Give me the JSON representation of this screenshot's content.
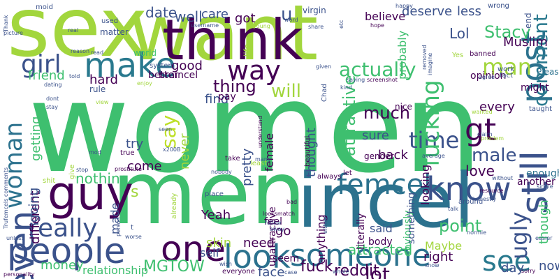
{
  "words": [
    {
      "text": "women",
      "color": "#3ebf6f"
    },
    {
      "text": "sex",
      "color": "#a2d63d"
    },
    {
      "text": "want",
      "color": "#a2d63d"
    },
    {
      "text": "men",
      "color": "#3ebf6f"
    },
    {
      "text": "incel",
      "color": "#2c728e"
    },
    {
      "text": "think",
      "color": "#440154"
    },
    {
      "text": "guy",
      "color": "#440154"
    },
    {
      "text": "make",
      "color": "#29798e"
    },
    {
      "text": "people",
      "color": "#3b528b"
    },
    {
      "text": "one",
      "color": "#440154"
    },
    {
      "text": "someone",
      "color": "#2c728e"
    },
    {
      "text": "look",
      "color": "#2c728e"
    },
    {
      "text": "femcel",
      "color": "#2c728e"
    },
    {
      "text": "know",
      "color": "#3b528b"
    },
    {
      "text": "see",
      "color": "#29798e"
    },
    {
      "text": "way",
      "color": "#440154"
    },
    {
      "text": "girl",
      "color": "#3b528b"
    },
    {
      "text": "even",
      "color": "#3b528b"
    },
    {
      "text": "really",
      "color": "#3b528b"
    },
    {
      "text": "woman",
      "color": "#2c728e"
    },
    {
      "text": "gt",
      "color": "#440154"
    },
    {
      "text": "time",
      "color": "#3b528b"
    },
    {
      "text": "still",
      "color": "#3b528b"
    },
    {
      "text": "post",
      "color": "#2c728e"
    },
    {
      "text": "comment",
      "color": "#29798e"
    },
    {
      "text": "man",
      "color": "#a2d63d"
    },
    {
      "text": "thing",
      "color": "#440154"
    },
    {
      "text": "will",
      "color": "#a2d63d"
    },
    {
      "text": "actually",
      "color": "#3ebf6f"
    },
    {
      "text": "say",
      "color": "#bddf26"
    },
    {
      "text": "fucking",
      "color": "#3ebf6f"
    },
    {
      "text": "much",
      "color": "#440154"
    },
    {
      "text": "male",
      "color": "#3b528b"
    },
    {
      "text": "ugly",
      "color": "#3b528b"
    },
    {
      "text": "MGTOW",
      "color": "#3ebf6f"
    },
    {
      "text": "date",
      "color": "#3b528b"
    },
    {
      "text": "well",
      "color": "#3b528b"
    },
    {
      "text": "u",
      "color": "#3b528b"
    },
    {
      "text": "got",
      "color": "#440154"
    },
    {
      "text": "care",
      "color": "#3b528b"
    },
    {
      "text": "deserve",
      "color": "#3b528b"
    },
    {
      "text": "less",
      "color": "#3b528b"
    },
    {
      "text": "Stacy",
      "color": "#3ebf6f"
    },
    {
      "text": "Lol",
      "color": "#3b528b"
    },
    {
      "text": "Muslim",
      "color": "#440154"
    },
    {
      "text": "lot",
      "color": "#440154"
    },
    {
      "text": "reddit",
      "color": "#440154"
    },
    {
      "text": "fuck",
      "color": "#440154"
    },
    {
      "text": "attracted",
      "color": "#3ebf6f"
    },
    {
      "text": "point",
      "color": "#3ebf6f"
    },
    {
      "text": "relationship",
      "color": "#3ebf6f"
    },
    {
      "text": "money",
      "color": "#3ebf6f"
    },
    {
      "text": "need",
      "color": "#440154"
    },
    {
      "text": "Yeah",
      "color": "#440154"
    },
    {
      "text": "skin",
      "color": "#a2d63d"
    },
    {
      "text": "self",
      "color": "#3b528b"
    },
    {
      "text": "nothing",
      "color": "#3ebf6f"
    },
    {
      "text": "different",
      "color": "#440154"
    },
    {
      "text": "friend",
      "color": "#3ebf6f"
    },
    {
      "text": "hard",
      "color": "#440154"
    },
    {
      "text": "good",
      "color": "#440154"
    },
    {
      "text": "find",
      "color": "#3b528b"
    },
    {
      "text": "pay",
      "color": "#440154"
    },
    {
      "text": "try",
      "color": "#3b528b"
    },
    {
      "text": "come",
      "color": "#440154"
    },
    {
      "text": "every",
      "color": "#440154"
    },
    {
      "text": "love",
      "color": "#440154"
    },
    {
      "text": "back",
      "color": "#440154"
    },
    {
      "text": "sure",
      "color": "#3b528b"
    },
    {
      "text": "right",
      "color": "#440154"
    },
    {
      "text": "day",
      "color": "#3b528b"
    },
    {
      "text": "now",
      "color": "#3b528b"
    },
    {
      "text": "feel",
      "color": "#440154"
    },
    {
      "text": "go",
      "color": "#440154"
    },
    {
      "text": "said",
      "color": "#3b528b"
    },
    {
      "text": "body",
      "color": "#440154"
    },
    {
      "text": "face",
      "color": "#3b528b"
    },
    {
      "text": "made",
      "color": "#3b528b"
    },
    {
      "text": "going",
      "color": "#3b528b"
    },
    {
      "text": "getting",
      "color": "#3ebf6f"
    },
    {
      "text": "enough",
      "color": "#2c728e"
    },
    {
      "text": "another",
      "color": "#440154"
    },
    {
      "text": "Maybe",
      "color": "#a2d63d"
    },
    {
      "text": "better",
      "color": "#440154"
    },
    {
      "text": "believe",
      "color": "#440154"
    },
    {
      "text": "probably",
      "color": "#3ebf6f"
    },
    {
      "text": "opinion",
      "color": "#440154"
    },
    {
      "text": "might",
      "color": "#440154"
    },
    {
      "text": "Please",
      "color": "#2c728e"
    },
    {
      "text": "thought",
      "color": "#3b528b"
    },
    {
      "text": "female",
      "color": "#440154"
    },
    {
      "text": "pretty",
      "color": "#3b528b"
    },
    {
      "text": "never",
      "color": "#a2d63d"
    },
    {
      "text": "attractive",
      "color": "#3ebf6f"
    },
    {
      "text": "though",
      "color": "#3ebf6f"
    },
    {
      "text": "seem",
      "color": "#440154"
    },
    {
      "text": "looking",
      "color": "#440154"
    },
    {
      "text": "unattractive",
      "color": "#440154"
    },
    {
      "text": "anything",
      "color": "#440154"
    },
    {
      "text": "literally",
      "color": "#440154"
    },
    {
      "text": "obviously",
      "color": "#3ebf6f"
    },
    {
      "text": "something",
      "color": "#3b528b"
    },
    {
      "text": "gender",
      "color": "#440154"
    },
    {
      "text": "nice",
      "color": "#440154"
    },
    {
      "text": "world",
      "color": "#3ebf6f"
    },
    {
      "text": "braincel",
      "color": "#440154"
    },
    {
      "text": "system",
      "color": "#3b528b"
    },
    {
      "text": "matter",
      "color": "#3b528b"
    },
    {
      "text": "used",
      "color": "#3b528b"
    },
    {
      "text": "moid",
      "color": "#3b528b"
    },
    {
      "text": "virgin",
      "color": "#3b528b"
    },
    {
      "text": "wrong",
      "color": "#3b528b"
    },
    {
      "text": "end",
      "color": "#3b528b"
    },
    {
      "text": "happy",
      "color": "#3b528b"
    },
    {
      "text": "work",
      "color": "#3b528b"
    },
    {
      "text": "fact",
      "color": "#3b528b"
    },
    {
      "text": "banned",
      "color": "#440154"
    },
    {
      "text": "agree",
      "color": "#3b528b"
    },
    {
      "text": "taught",
      "color": "#3b528b"
    },
    {
      "text": "hope",
      "color": "#440154"
    },
    {
      "text": "given",
      "color": "#3b528b"
    },
    {
      "text": "saying",
      "color": "#3b528b"
    },
    {
      "text": "screenshot",
      "color": "#440154"
    },
    {
      "text": "Chad",
      "color": "#3b528b"
    },
    {
      "text": "rule",
      "color": "#3b528b"
    },
    {
      "text": "told",
      "color": "#3b528b"
    },
    {
      "text": "dating",
      "color": "#3b528b"
    },
    {
      "text": "stay",
      "color": "#3b528b"
    },
    {
      "text": "dont",
      "color": "#3b528b"
    },
    {
      "text": "true",
      "color": "#440154"
    },
    {
      "text": "x200B",
      "color": "#3b528b"
    },
    {
      "text": "seen",
      "color": "#3b528b"
    },
    {
      "text": "take",
      "color": "#440154"
    },
    {
      "text": "many",
      "color": "#3b528b"
    },
    {
      "text": "understand",
      "color": "#440154"
    },
    {
      "text": "beautiful",
      "color": "#440154"
    },
    {
      "text": "average",
      "color": "#3b528b"
    },
    {
      "text": "honestly",
      "color": "#3b528b"
    },
    {
      "text": "problem",
      "color": "#a2d63d"
    },
    {
      "text": "claim",
      "color": "#3b528b"
    },
    {
      "text": "around",
      "color": "#3b528b"
    },
    {
      "text": "prostitute",
      "color": "#440154"
    },
    {
      "text": "stop",
      "color": "#3b528b"
    },
    {
      "text": "give",
      "color": "#a2d63d"
    },
    {
      "text": "shit",
      "color": "#a2d63d"
    },
    {
      "text": "nobody",
      "color": "#3b528b"
    },
    {
      "text": "least",
      "color": "#a2d63d"
    },
    {
      "text": "let",
      "color": "#440154"
    },
    {
      "text": "always",
      "color": "#440154"
    },
    {
      "text": "looksmatch",
      "color": "#440154"
    },
    {
      "text": "bad",
      "color": "#440154"
    },
    {
      "text": "place",
      "color": "#3b528b"
    },
    {
      "text": "already",
      "color": "#a2d63d"
    },
    {
      "text": "person",
      "color": "#3b528b"
    },
    {
      "text": "worse",
      "color": "#3b528b"
    },
    {
      "text": "wish",
      "color": "#3b528b"
    },
    {
      "text": "everyone",
      "color": "#440154"
    },
    {
      "text": "case",
      "color": "#3b528b"
    },
    {
      "text": "whole",
      "color": "#3b528b"
    },
    {
      "text": "show",
      "color": "#3b528b"
    },
    {
      "text": "sorry",
      "color": "#440154"
    },
    {
      "text": "normie",
      "color": "#3b528b"
    },
    {
      "text": "easier",
      "color": "#3b528b"
    },
    {
      "text": "single",
      "color": "#3b528b"
    },
    {
      "text": "resource",
      "color": "#440154"
    },
    {
      "text": "talk",
      "color": "#3b528b"
    },
    {
      "text": "unless",
      "color": "#3b528b"
    },
    {
      "text": "personality",
      "color": "#440154"
    },
    {
      "text": "Trufemcels comments",
      "color": "#3b528b"
    },
    {
      "text": "Thank",
      "color": "#3b528b"
    },
    {
      "text": "picture",
      "color": "#3b528b"
    },
    {
      "text": "real",
      "color": "#3b528b"
    },
    {
      "text": "reason",
      "color": "#3b528b"
    },
    {
      "text": "read",
      "color": "#3b528b"
    },
    {
      "text": "username",
      "color": "#3b528b"
    },
    {
      "text": "young",
      "color": "#a2d63d"
    },
    {
      "text": "word",
      "color": "#3b528b"
    },
    {
      "text": "share",
      "color": "#3b528b"
    },
    {
      "text": "etc",
      "color": "#3b528b"
    },
    {
      "text": "life",
      "color": "#a2d63d"
    },
    {
      "text": "imagine",
      "color": "#3b528b"
    },
    {
      "text": "removed",
      "color": "#3b528b"
    },
    {
      "text": "kind",
      "color": "#3b528b"
    },
    {
      "text": "enjoy",
      "color": "#a2d63d"
    },
    {
      "text": "view",
      "color": "#a2d63d"
    },
    {
      "text": "mod",
      "color": "#3b528b"
    },
    {
      "text": "Yes",
      "color": "#a2d63d"
    },
    {
      "text": "wanted",
      "color": "#a2d63d"
    },
    {
      "text": "without",
      "color": "#3b528b"
    },
    {
      "text": "follow",
      "color": "#3b528b"
    },
    {
      "text": "away",
      "color": "#3b528b"
    },
    {
      "text": "either",
      "color": "#3b528b"
    },
    {
      "text": "t",
      "color": "#3b528b"
    },
    {
      "text": "s",
      "color": "#a2d63d"
    }
  ]
}
